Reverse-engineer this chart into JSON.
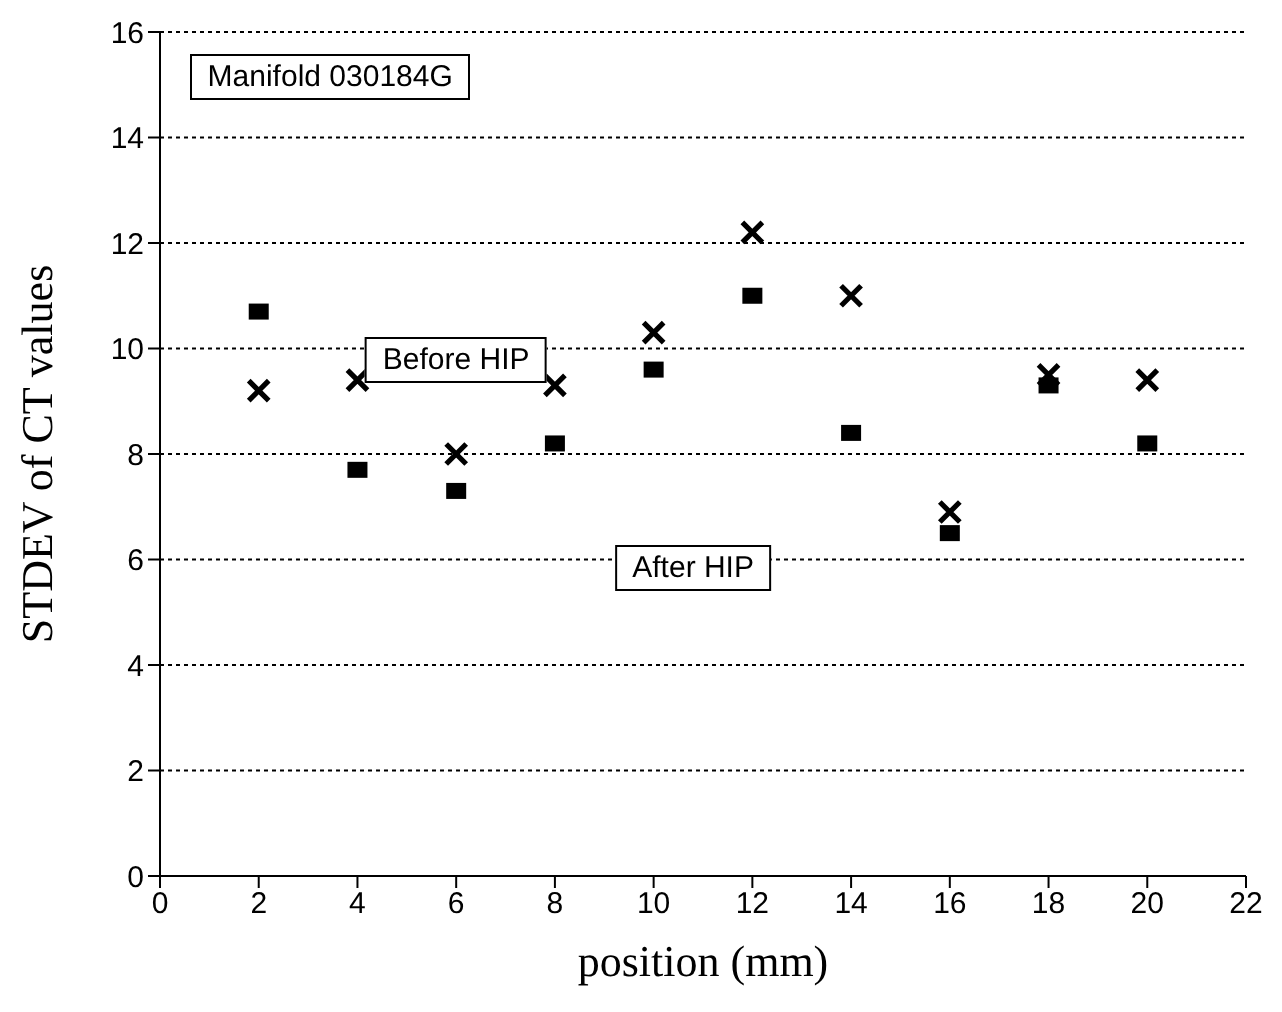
{
  "chart_data": {
    "type": "scatter",
    "xlabel": "position (mm)",
    "ylabel": "STDEV of CT values",
    "annotations": [
      "Manifold 030184G"
    ],
    "x": [
      2,
      4,
      6,
      8,
      10,
      12,
      14,
      16,
      18,
      20
    ],
    "series": [
      {
        "name": "Before HIP",
        "color": "#000000",
        "marker": "cross",
        "values": [
          9.2,
          9.4,
          8.0,
          9.3,
          10.3,
          12.2,
          11.0,
          6.9,
          9.5,
          9.4
        ]
      },
      {
        "name": "After HIP",
        "color": "#000000",
        "marker": "square",
        "values": [
          10.7,
          7.7,
          7.3,
          8.2,
          9.6,
          11.0,
          8.4,
          6.5,
          9.3,
          8.2
        ]
      }
    ],
    "xlim": [
      0,
      22
    ],
    "xticks": [
      0,
      2,
      4,
      6,
      8,
      10,
      12,
      14,
      16,
      18,
      20,
      22
    ],
    "ylim": [
      0,
      16
    ],
    "yticks": [
      0,
      2,
      4,
      6,
      8,
      10,
      12,
      14,
      16
    ],
    "grid": "y"
  }
}
